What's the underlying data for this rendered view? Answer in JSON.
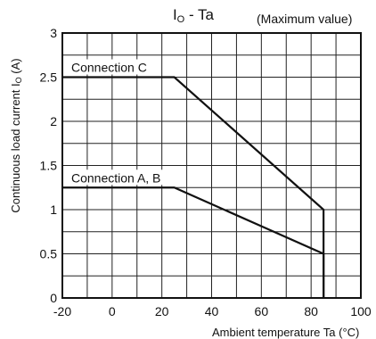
{
  "chart_data": {
    "type": "line",
    "title_main": "I",
    "title_sub": "O",
    "title_rest": " - Ta",
    "title_note": "(Maximum value)",
    "xlabel": "Ambient temperature Ta (°C)",
    "ylabel_main": "Continuous load current I",
    "ylabel_sub": "O",
    "ylabel_unit": " (A)",
    "xlim": [
      -20,
      100
    ],
    "ylim": [
      0,
      3
    ],
    "x_ticks": [
      -20,
      0,
      20,
      40,
      60,
      80,
      100
    ],
    "x_tick_labels": [
      "-20",
      "0",
      "20",
      "40",
      "60",
      "80",
      "100"
    ],
    "y_ticks": [
      0,
      0.5,
      1,
      1.5,
      2,
      2.5,
      3
    ],
    "y_tick_labels": [
      "0",
      "0.5",
      "1",
      "1.5",
      "2",
      "2.5",
      "3"
    ],
    "grid": true,
    "series": [
      {
        "name": "Connection C",
        "points": [
          [
            -20,
            2.5
          ],
          [
            25,
            2.5
          ],
          [
            85,
            1.0
          ],
          [
            85,
            0
          ]
        ]
      },
      {
        "name": "Connection A, B",
        "points": [
          [
            -20,
            1.25
          ],
          [
            25,
            1.25
          ],
          [
            85,
            0.5
          ],
          [
            85,
            0
          ]
        ]
      }
    ]
  }
}
